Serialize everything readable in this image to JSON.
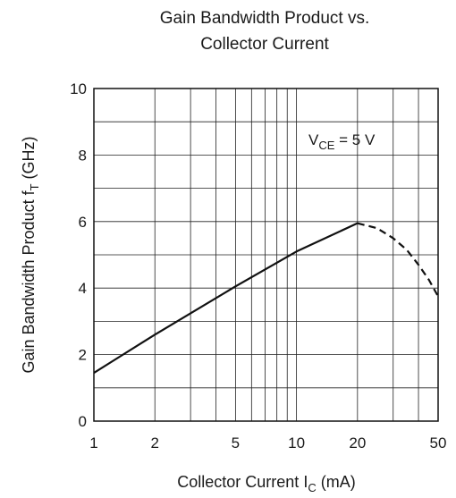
{
  "chart_data": {
    "type": "line",
    "title_lines": [
      "Gain Bandwidth Product vs.",
      "Collector Current"
    ],
    "xlabel": {
      "main": "Collector Current  I",
      "sub": "C",
      "unit": "  (mA)"
    },
    "ylabel": {
      "main": "Gain Bandwidth Product  f",
      "sub": "T",
      "unit": "  (GHz)"
    },
    "x_scale": "log",
    "xlim": [
      1,
      50
    ],
    "ylim": [
      0,
      10
    ],
    "x_ticks": [
      1,
      2,
      5,
      10,
      20,
      50
    ],
    "x_tick_labels": [
      "1",
      "2",
      "5",
      "10",
      "20",
      "50"
    ],
    "y_ticks": [
      0,
      2,
      4,
      6,
      8,
      10
    ],
    "y_tick_labels": [
      "0",
      "2",
      "4",
      "6",
      "8",
      "10"
    ],
    "grid": true,
    "annotation": {
      "main": "V",
      "sub": "CE",
      "rest": " = 5 V"
    },
    "series": [
      {
        "style": "solid",
        "x": [
          1,
          2,
          5,
          10,
          20
        ],
        "y": [
          1.45,
          2.6,
          4.05,
          5.1,
          5.95
        ]
      },
      {
        "style": "dashed",
        "x": [
          20,
          25,
          30,
          35,
          40,
          45,
          50
        ],
        "y": [
          5.95,
          5.8,
          5.5,
          5.15,
          4.7,
          4.25,
          3.75
        ]
      }
    ]
  }
}
